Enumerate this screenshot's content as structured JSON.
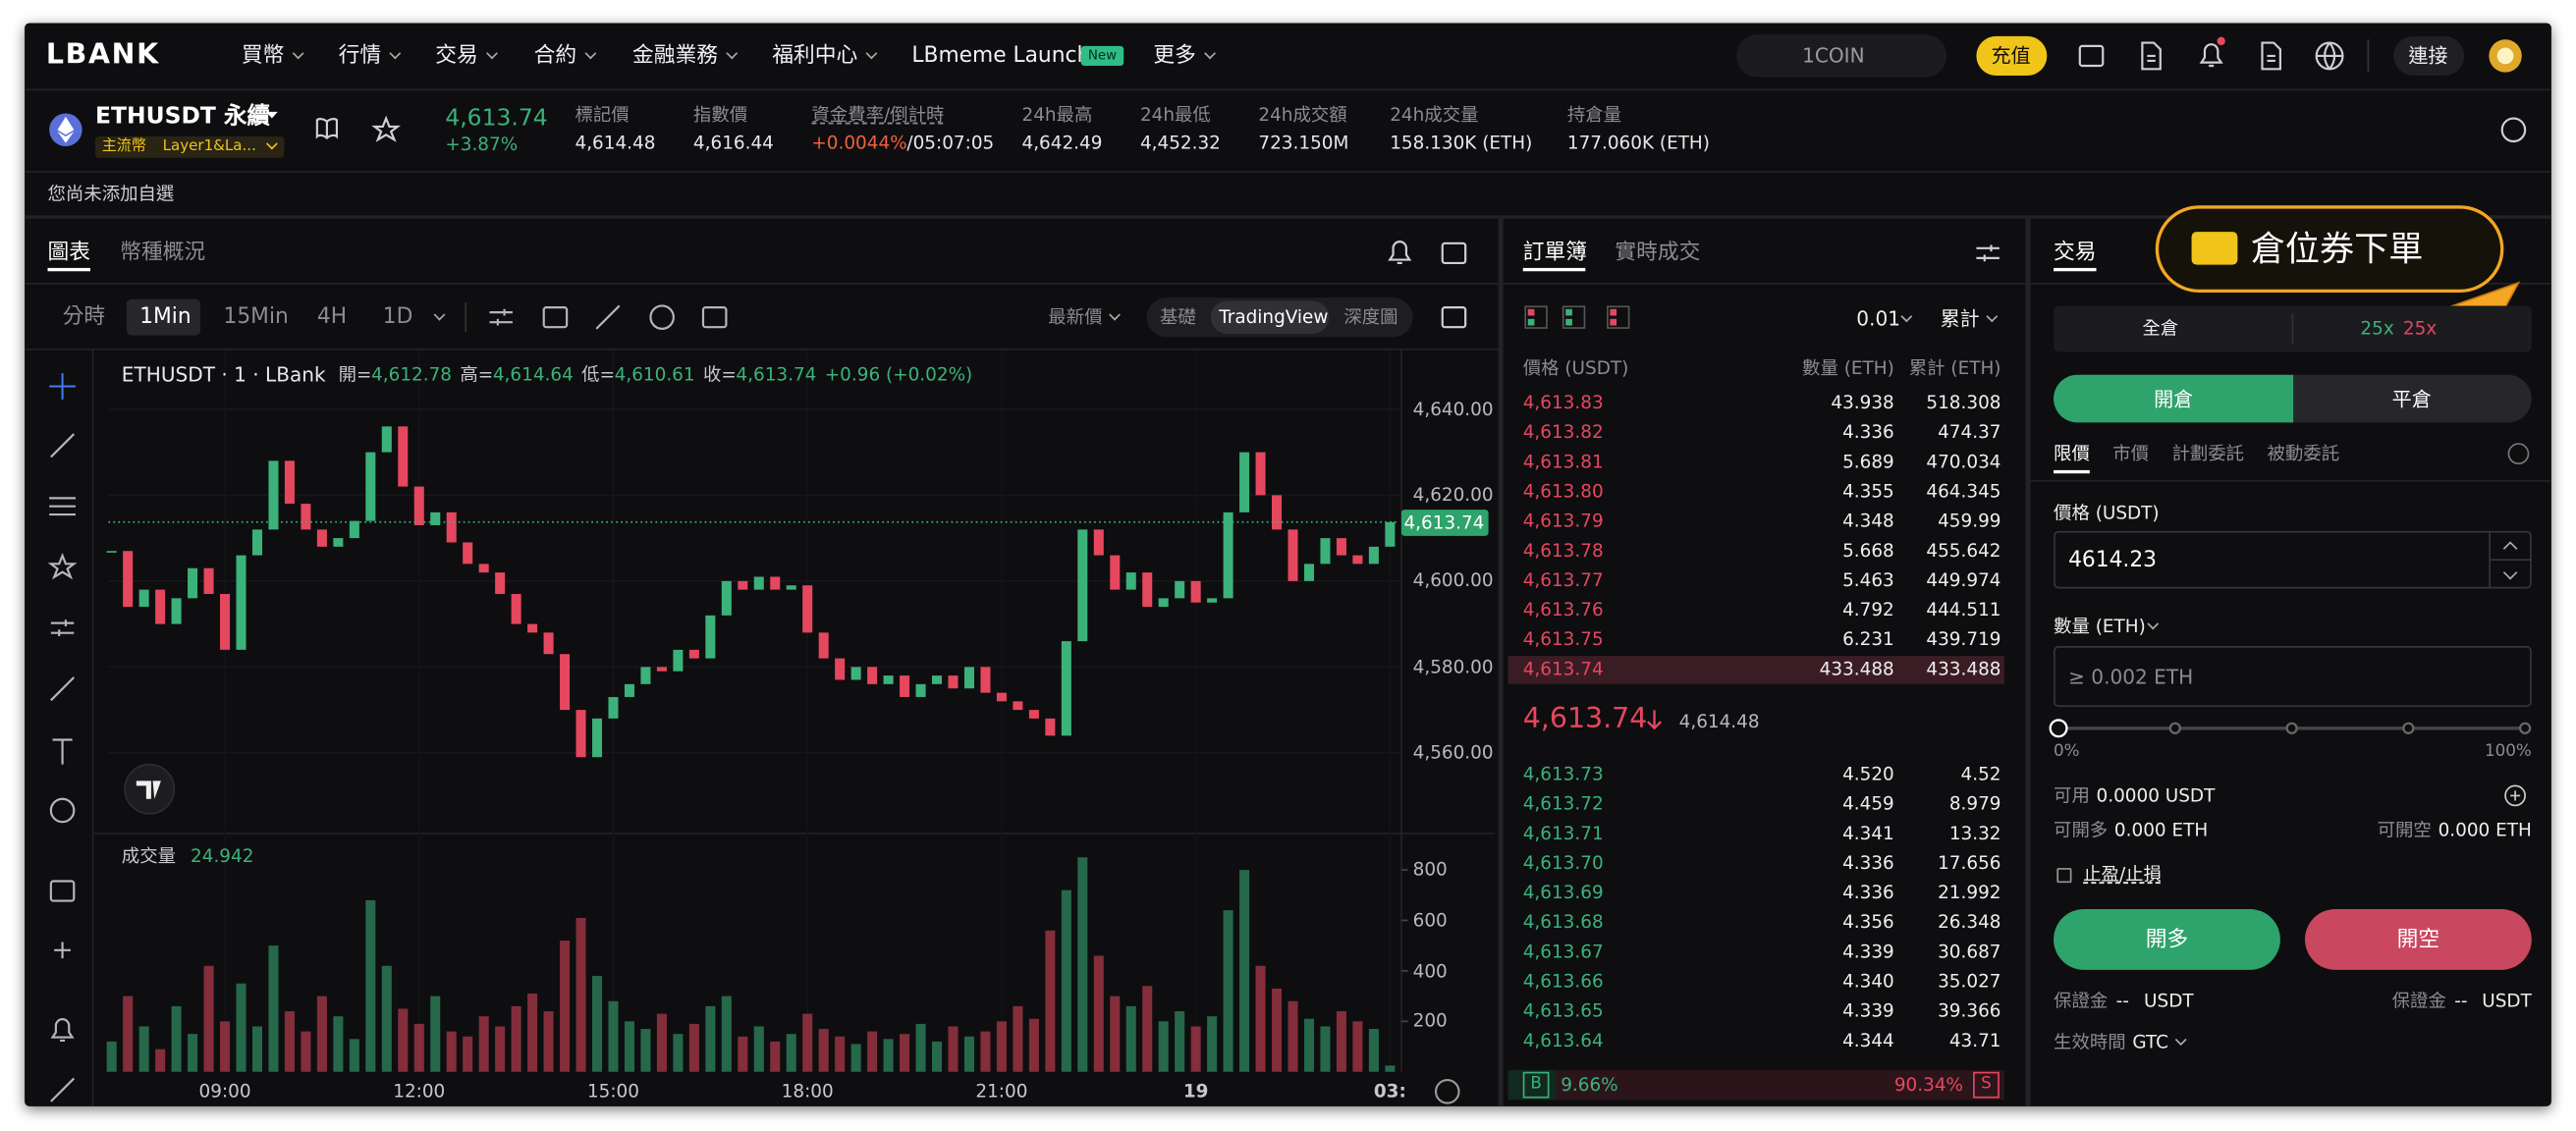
{
  "nav": {
    "logo": "LBANK",
    "menu": [
      "買幣",
      "行情",
      "交易",
      "合約",
      "金融業務",
      "福利中心",
      "LBmeme Launch",
      "更多"
    ],
    "new_badge": "New",
    "search": "1COIN",
    "deposit": "充值",
    "connect": "連接"
  },
  "ticker": {
    "symbol": "ETHUSDT 永續",
    "tags": [
      "主流幣",
      "Layer1&La..."
    ],
    "price": "4,613.74",
    "change": "+3.87%",
    "stats": [
      {
        "label": "標記價",
        "value": "4,614.48"
      },
      {
        "label": "指數價",
        "value": "4,616.44"
      },
      {
        "label": "資金費率/倒計時",
        "value": "+0.0044%",
        "countdown": "/05:07:05"
      },
      {
        "label": "24h最高",
        "value": "4,642.49"
      },
      {
        "label": "24h最低",
        "value": "4,452.32"
      },
      {
        "label": "24h成交額",
        "value": "723.150M"
      },
      {
        "label": "24h成交量",
        "value": "158.130K (ETH)"
      },
      {
        "label": "持倉量",
        "value": "177.060K (ETH)"
      }
    ]
  },
  "watchlist_note": "您尚未添加自選",
  "chart_panel": {
    "tabs": [
      "圖表",
      "幣種概況"
    ],
    "intervals": [
      "分時",
      "1Min",
      "15Min",
      "4H",
      "1D"
    ],
    "price_source": "最新價",
    "views": [
      "基礎",
      "TradingView",
      "深度圖"
    ],
    "legend": {
      "symbol": "ETHUSDT · 1 · LBank",
      "fields": [
        {
          "label": "開=",
          "value": "4,612.78"
        },
        {
          "label": "高=",
          "value": "4,614.64"
        },
        {
          "label": "低=",
          "value": "4,610.61"
        },
        {
          "label": "收=",
          "value": "4,613.74"
        }
      ],
      "change": "+0.96 (+0.02%)"
    },
    "volume_label": "成交量",
    "volume_value": "24.942"
  },
  "price_chart": {
    "type": "candlestick",
    "xlim": [
      7.2,
      27.15
    ],
    "xticks": [
      {
        "value": 9,
        "label": "09:00"
      },
      {
        "value": 12,
        "label": "12:00"
      },
      {
        "value": 15,
        "label": "15:00"
      },
      {
        "value": 18,
        "label": "18:00"
      },
      {
        "value": 21,
        "label": "21:00"
      },
      {
        "value": 24,
        "label": "19"
      },
      {
        "value": 27,
        "label": "03:"
      }
    ],
    "ylim": [
      4542,
      4653
    ],
    "yticks": [
      {
        "value": 4560,
        "label": "4,560.00"
      },
      {
        "value": 4580,
        "label": "4,580.00"
      },
      {
        "value": 4600,
        "label": "4,600.00"
      },
      {
        "value": 4620,
        "label": "4,620.00"
      },
      {
        "value": 4640,
        "label": "4,640.00"
      }
    ],
    "last_price": {
      "value": 4613.74,
      "label": "4,613.74"
    },
    "x": [
      7.25,
      7.5,
      7.75,
      8,
      8.25,
      8.5,
      8.75,
      9,
      9.25,
      9.5,
      9.75,
      10,
      10.25,
      10.5,
      10.75,
      11,
      11.25,
      11.5,
      11.75,
      12,
      12.25,
      12.5,
      12.75,
      13,
      13.25,
      13.5,
      13.75,
      14,
      14.25,
      14.5,
      14.75,
      15,
      15.25,
      15.5,
      15.75,
      16,
      16.25,
      16.5,
      16.75,
      17,
      17.25,
      17.5,
      17.75,
      18,
      18.25,
      18.5,
      18.75,
      19,
      19.25,
      19.5,
      19.75,
      20,
      20.25,
      20.5,
      20.75,
      21,
      21.25,
      21.5,
      21.75,
      22,
      22.25,
      22.5,
      22.75,
      23,
      23.25,
      23.5,
      23.75,
      24,
      24.25,
      24.5,
      24.75,
      25,
      25.25,
      25.5,
      25.75,
      26,
      26.25,
      26.5,
      26.75,
      27
    ],
    "close": [
      4607,
      4594,
      4598,
      4590,
      4596,
      4603,
      4597,
      4584,
      4606,
      4612,
      4628,
      4618,
      4612,
      4608,
      4610,
      4614,
      4630,
      4636,
      4622,
      4613,
      4616,
      4609,
      4604,
      4602,
      4597,
      4590,
      4588,
      4583,
      4570,
      4559,
      4568,
      4573,
      4576,
      4580,
      4579,
      4584,
      4582,
      4592,
      4600,
      4598,
      4601,
      4598,
      4599,
      4588,
      4582,
      4577,
      4580,
      4576,
      4578,
      4573,
      4576,
      4578,
      4575,
      4580,
      4574,
      4572,
      4570,
      4568,
      4564,
      4586,
      4612,
      4606,
      4598,
      4602,
      4594,
      4596,
      4600,
      4595,
      4596,
      4616,
      4630,
      4620,
      4612,
      4600,
      4604,
      4610,
      4606,
      4604,
      4608,
      4613.74
    ],
    "volume_ylim": [
      0,
      925
    ],
    "volume_yticks": [
      200,
      400,
      600,
      800
    ],
    "volume": [
      120,
      300,
      180,
      90,
      260,
      150,
      420,
      200,
      350,
      180,
      500,
      240,
      160,
      300,
      220,
      130,
      680,
      420,
      250,
      190,
      300,
      160,
      140,
      220,
      180,
      260,
      310,
      240,
      520,
      610,
      380,
      280,
      200,
      170,
      230,
      150,
      190,
      260,
      300,
      140,
      180,
      120,
      150,
      230,
      170,
      140,
      110,
      160,
      130,
      150,
      190,
      120,
      180,
      140,
      160,
      200,
      260,
      210,
      560,
      720,
      850,
      460,
      300,
      260,
      340,
      200,
      240,
      180,
      220,
      640,
      800,
      420,
      330,
      280,
      210,
      180,
      240,
      200,
      170,
      24.942
    ]
  },
  "order_book": {
    "tabs": [
      "訂單簿",
      "實時成交"
    ],
    "precision": "0.01",
    "depth_mode": "累計",
    "headers": [
      "價格 (USDT)",
      "數量 (ETH)",
      "累計 (ETH)"
    ],
    "asks": [
      [
        "4,613.83",
        "43.938",
        "518.308"
      ],
      [
        "4,613.82",
        "4.336",
        "474.37"
      ],
      [
        "4,613.81",
        "5.689",
        "470.034"
      ],
      [
        "4,613.80",
        "4.355",
        "464.345"
      ],
      [
        "4,613.79",
        "4.348",
        "459.99"
      ],
      [
        "4,613.78",
        "5.668",
        "455.642"
      ],
      [
        "4,613.77",
        "5.463",
        "449.974"
      ],
      [
        "4,613.76",
        "4.792",
        "444.511"
      ],
      [
        "4,613.75",
        "6.231",
        "439.719"
      ],
      [
        "4,613.74",
        "433.488",
        "433.488"
      ]
    ],
    "last_price": "4,613.74",
    "mark_price": "4,614.48",
    "bids": [
      [
        "4,613.73",
        "4.520",
        "4.52"
      ],
      [
        "4,613.72",
        "4.459",
        "8.979"
      ],
      [
        "4,613.71",
        "4.341",
        "13.32"
      ],
      [
        "4,613.70",
        "4.336",
        "17.656"
      ],
      [
        "4,613.69",
        "4.336",
        "21.992"
      ],
      [
        "4,613.68",
        "4.356",
        "26.348"
      ],
      [
        "4,613.67",
        "4.339",
        "30.687"
      ],
      [
        "4,613.66",
        "4.340",
        "35.027"
      ],
      [
        "4,613.65",
        "4.339",
        "39.366"
      ],
      [
        "4,613.64",
        "4.344",
        "43.71"
      ]
    ],
    "buy_label": "B",
    "buy_ratio": "9.66%",
    "sell_ratio": "90.34%",
    "sell_label": "S"
  },
  "trade_panel": {
    "title": "交易",
    "promo": "倉位券下單",
    "margin_mode": "全倉",
    "leverage_long": "25x",
    "leverage_short": "25x",
    "position_tabs": [
      "開倉",
      "平倉"
    ],
    "order_types": [
      "限價",
      "市價",
      "計劃委託",
      "被動委託"
    ],
    "price_label": "價格 (USDT)",
    "price_value": "4614.23",
    "amount_label": "數量 (ETH)",
    "amount_placeholder": "≥ 0.002 ETH",
    "slider_min": "0%",
    "slider_max": "100%",
    "available_label": "可用",
    "available_value": "0.0000 USDT",
    "max_long_label": "可開多",
    "max_long_value": "0.000 ETH",
    "max_short_label": "可開空",
    "max_short_value": "0.000 ETH",
    "tpsl": "止盈/止損",
    "buy_button": "開多",
    "sell_button": "開空",
    "margin_long": {
      "label": "保證金",
      "value": "--",
      "unit": "USDT"
    },
    "margin_short": {
      "label": "保證金",
      "value": "--",
      "unit": "USDT"
    },
    "time_in_force_label": "生效時間",
    "time_in_force": "GTC"
  }
}
